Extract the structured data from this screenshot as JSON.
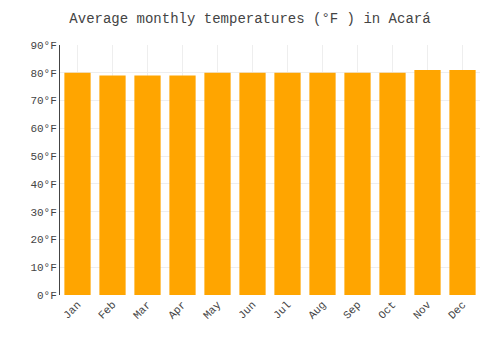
{
  "chart_data": {
    "type": "bar",
    "title": "Average monthly temperatures (°F ) in Acará",
    "categories": [
      "Jan",
      "Feb",
      "Mar",
      "Apr",
      "May",
      "Jun",
      "Jul",
      "Aug",
      "Sep",
      "Oct",
      "Nov",
      "Dec"
    ],
    "values": [
      80,
      79,
      79,
      79,
      80,
      80,
      80,
      80,
      80,
      80,
      81,
      81
    ],
    "color": "#FFA500",
    "ylim": [
      0,
      90
    ],
    "yticks": [
      {
        "value": 0,
        "label": "0°F"
      },
      {
        "value": 10,
        "label": "10°F"
      },
      {
        "value": 20,
        "label": "20°F"
      },
      {
        "value": 30,
        "label": "30°F"
      },
      {
        "value": 40,
        "label": "40°F"
      },
      {
        "value": 50,
        "label": "50°F"
      },
      {
        "value": 60,
        "label": "60°F"
      },
      {
        "value": 70,
        "label": "70°F"
      },
      {
        "value": 80,
        "label": "80°F"
      },
      {
        "value": 90,
        "label": "90°F"
      }
    ],
    "grid": true
  }
}
